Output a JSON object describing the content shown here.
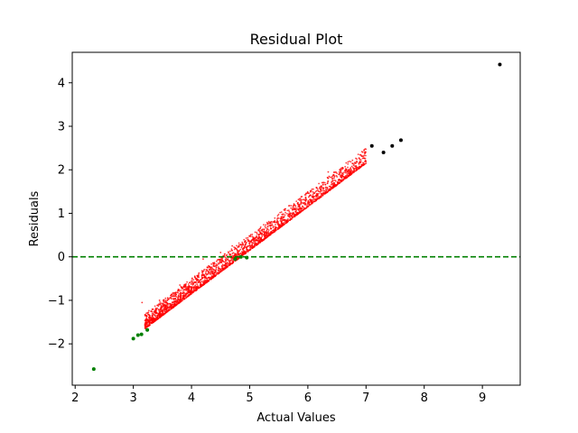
{
  "chart_data": {
    "type": "scatter",
    "title": "Residual Plot",
    "xlabel": "Actual Values",
    "ylabel": "Residuals",
    "xlim": [
      1.95,
      9.65
    ],
    "ylim": [
      -2.95,
      4.7
    ],
    "xticks": [
      2,
      3,
      4,
      5,
      6,
      7,
      8,
      9
    ],
    "yticks": [
      -2,
      -1,
      0,
      1,
      2,
      3,
      4
    ],
    "reference_line": {
      "y": 0,
      "style": "dashed",
      "color": "#008000"
    },
    "grid": false,
    "legend": "none",
    "series": [
      {
        "color": "#ff0000",
        "marker_size": "small",
        "relationship": "residual ≈ actual − 4.85, dense band",
        "x_range": [
          3.2,
          7.0
        ],
        "band_width": 0.35,
        "count": 2600,
        "sparse_points": [
          [
            3.15,
            -1.05
          ],
          [
            3.45,
            -1.0
          ],
          [
            3.8,
            -0.65
          ],
          [
            4.2,
            -0.05
          ],
          [
            4.5,
            0.1
          ],
          [
            4.7,
            0.25
          ],
          [
            5.0,
            0.3
          ],
          [
            5.6,
            0.85
          ],
          [
            6.05,
            1.3
          ],
          [
            6.35,
            1.95
          ],
          [
            6.6,
            2.05
          ],
          [
            6.7,
            2.0
          ]
        ]
      },
      {
        "color": "#008000",
        "marker_size": "medium",
        "points": [
          [
            2.32,
            -2.58
          ],
          [
            3.0,
            -1.88
          ],
          [
            3.08,
            -1.8
          ],
          [
            3.14,
            -1.78
          ],
          [
            3.24,
            -1.68
          ],
          [
            4.75,
            -0.05
          ],
          [
            4.85,
            0.0
          ],
          [
            4.95,
            -0.02
          ]
        ]
      },
      {
        "color": "#000000",
        "marker_size": "medium",
        "points": [
          [
            7.1,
            2.55
          ],
          [
            7.3,
            2.4
          ],
          [
            7.45,
            2.55
          ],
          [
            7.6,
            2.68
          ],
          [
            9.3,
            4.42
          ]
        ]
      }
    ]
  }
}
